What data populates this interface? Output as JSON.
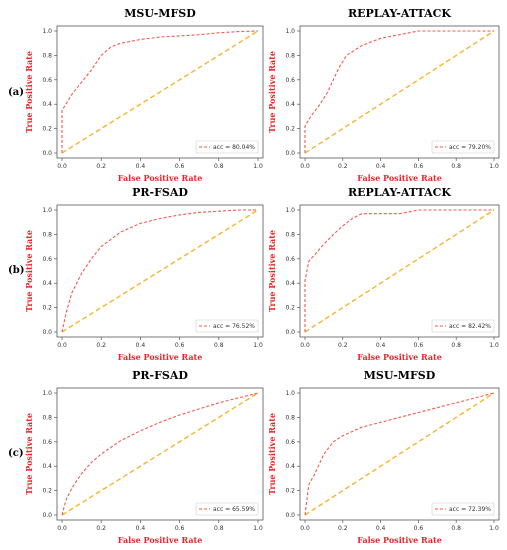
{
  "row_labels": [
    "(a)",
    "(b)",
    "(c)"
  ],
  "colors": {
    "roc": "#f25a4d",
    "diagonal": "#f5b531",
    "axis_label": "#e8262a"
  },
  "chart_data": [
    {
      "type": "line",
      "title": "MSU-MFSD",
      "xlabel": "False Positive Rate",
      "ylabel": "True Positive Rate",
      "xlim": [
        0,
        1
      ],
      "ylim": [
        0,
        1
      ],
      "x_ticks": [
        "0.0",
        "0.2",
        "0.4",
        "0.6",
        "0.8",
        "1.0"
      ],
      "y_ticks": [
        "0.0",
        "0.2",
        "0.4",
        "0.6",
        "0.8",
        "1.0"
      ],
      "legend": "acc = 80.04%",
      "legend_position": "bottom-right",
      "series": [
        {
          "x": [
            0,
            0,
            0.02,
            0.05,
            0.1,
            0.15,
            0.2,
            0.25,
            0.3,
            0.4,
            0.5,
            0.6,
            0.7,
            0.8,
            0.9,
            1.0
          ],
          "y": [
            0,
            0.35,
            0.4,
            0.48,
            0.58,
            0.68,
            0.8,
            0.87,
            0.9,
            0.93,
            0.95,
            0.96,
            0.97,
            0.985,
            0.995,
            1.0
          ]
        }
      ],
      "diagonal": [
        [
          0,
          0
        ],
        [
          1,
          1
        ]
      ]
    },
    {
      "type": "line",
      "title": "REPLAY-ATTACK",
      "xlabel": "False Positive Rate",
      "ylabel": "True Positive Rate",
      "xlim": [
        0,
        1
      ],
      "ylim": [
        0,
        1
      ],
      "x_ticks": [
        "0.0",
        "0.2",
        "0.4",
        "0.6",
        "0.8",
        "1.0"
      ],
      "y_ticks": [
        "0.0",
        "0.2",
        "0.4",
        "0.6",
        "0.8",
        "1.0"
      ],
      "legend": "acc = 79.20%",
      "legend_position": "bottom-right",
      "series": [
        {
          "x": [
            0,
            0,
            0.03,
            0.08,
            0.12,
            0.18,
            0.22,
            0.3,
            0.4,
            0.5,
            0.6,
            0.7,
            0.8,
            0.9,
            1.0
          ],
          "y": [
            0,
            0.22,
            0.3,
            0.4,
            0.5,
            0.7,
            0.8,
            0.88,
            0.94,
            0.97,
            1.0,
            1.0,
            1.0,
            1.0,
            1.0
          ]
        }
      ],
      "diagonal": [
        [
          0,
          0
        ],
        [
          1,
          1
        ]
      ]
    },
    {
      "type": "line",
      "title": "PR-FSAD",
      "xlabel": "False Positive Rate",
      "ylabel": "True Positive Rate",
      "xlim": [
        0,
        1
      ],
      "ylim": [
        0,
        1
      ],
      "x_ticks": [
        "0.0",
        "0.2",
        "0.4",
        "0.6",
        "0.8",
        "1.0"
      ],
      "y_ticks": [
        "0.0",
        "0.2",
        "0.4",
        "0.6",
        "0.8",
        "1.0"
      ],
      "legend": "acc = 76.52%",
      "legend_position": "bottom-right",
      "series": [
        {
          "x": [
            0,
            0.02,
            0.05,
            0.1,
            0.15,
            0.2,
            0.3,
            0.4,
            0.5,
            0.6,
            0.7,
            0.8,
            0.9,
            1.0
          ],
          "y": [
            0,
            0.15,
            0.32,
            0.48,
            0.6,
            0.7,
            0.82,
            0.89,
            0.93,
            0.96,
            0.98,
            0.99,
            1.0,
            1.0
          ]
        }
      ],
      "diagonal": [
        [
          0,
          0
        ],
        [
          1,
          1
        ]
      ]
    },
    {
      "type": "line",
      "title": "REPLAY-ATTACK",
      "xlabel": "False Positive Rate",
      "ylabel": "True Positive Rate",
      "xlim": [
        0,
        1
      ],
      "ylim": [
        0,
        1
      ],
      "x_ticks": [
        "0.0",
        "0.2",
        "0.4",
        "0.6",
        "0.8",
        "1.0"
      ],
      "y_ticks": [
        "0.0",
        "0.2",
        "0.4",
        "0.6",
        "0.8",
        "1.0"
      ],
      "legend": "acc = 82.42%",
      "legend_position": "bottom-right",
      "series": [
        {
          "x": [
            0,
            0,
            0.02,
            0.05,
            0.1,
            0.15,
            0.2,
            0.25,
            0.3,
            0.5,
            0.6,
            0.7,
            0.8,
            0.9,
            1.0
          ],
          "y": [
            0,
            0.42,
            0.58,
            0.63,
            0.72,
            0.8,
            0.87,
            0.93,
            0.97,
            0.97,
            1.0,
            1.0,
            1.0,
            1.0,
            1.0
          ]
        }
      ],
      "diagonal": [
        [
          0,
          0
        ],
        [
          1,
          1
        ]
      ]
    },
    {
      "type": "line",
      "title": "PR-FSAD",
      "xlabel": "False Positive Rate",
      "ylabel": "True Positive Rate",
      "xlim": [
        0,
        1
      ],
      "ylim": [
        0,
        1
      ],
      "x_ticks": [
        "0.0",
        "0.2",
        "0.4",
        "0.6",
        "0.8",
        "1.0"
      ],
      "y_ticks": [
        "0.0",
        "0.2",
        "0.4",
        "0.6",
        "0.8",
        "1.0"
      ],
      "legend": "acc = 65.59%",
      "legend_position": "bottom-right",
      "series": [
        {
          "x": [
            0,
            0.02,
            0.05,
            0.1,
            0.15,
            0.2,
            0.3,
            0.4,
            0.5,
            0.6,
            0.7,
            0.8,
            0.9,
            1.0
          ],
          "y": [
            0,
            0.12,
            0.22,
            0.34,
            0.43,
            0.5,
            0.61,
            0.69,
            0.76,
            0.82,
            0.87,
            0.92,
            0.96,
            1.0
          ]
        }
      ],
      "diagonal": [
        [
          0,
          0
        ],
        [
          1,
          1
        ]
      ]
    },
    {
      "type": "line",
      "title": "MSU-MFSD",
      "xlabel": "False Positive Rate",
      "ylabel": "True Positive Rate",
      "xlim": [
        0,
        1
      ],
      "ylim": [
        0,
        1
      ],
      "x_ticks": [
        "0.0",
        "0.2",
        "0.4",
        "0.6",
        "0.8",
        "1.0"
      ],
      "y_ticks": [
        "0.0",
        "0.2",
        "0.4",
        "0.6",
        "0.8",
        "1.0"
      ],
      "legend": "acc = 72.39%",
      "legend_position": "bottom-right",
      "series": [
        {
          "x": [
            0,
            0.02,
            0.05,
            0.1,
            0.15,
            0.2,
            0.3,
            0.4,
            0.5,
            0.6,
            0.7,
            0.8,
            0.9,
            1.0
          ],
          "y": [
            0,
            0.25,
            0.33,
            0.5,
            0.6,
            0.65,
            0.72,
            0.76,
            0.8,
            0.84,
            0.88,
            0.92,
            0.96,
            1.0
          ]
        }
      ],
      "diagonal": [
        [
          0,
          0
        ],
        [
          1,
          1
        ]
      ]
    }
  ]
}
